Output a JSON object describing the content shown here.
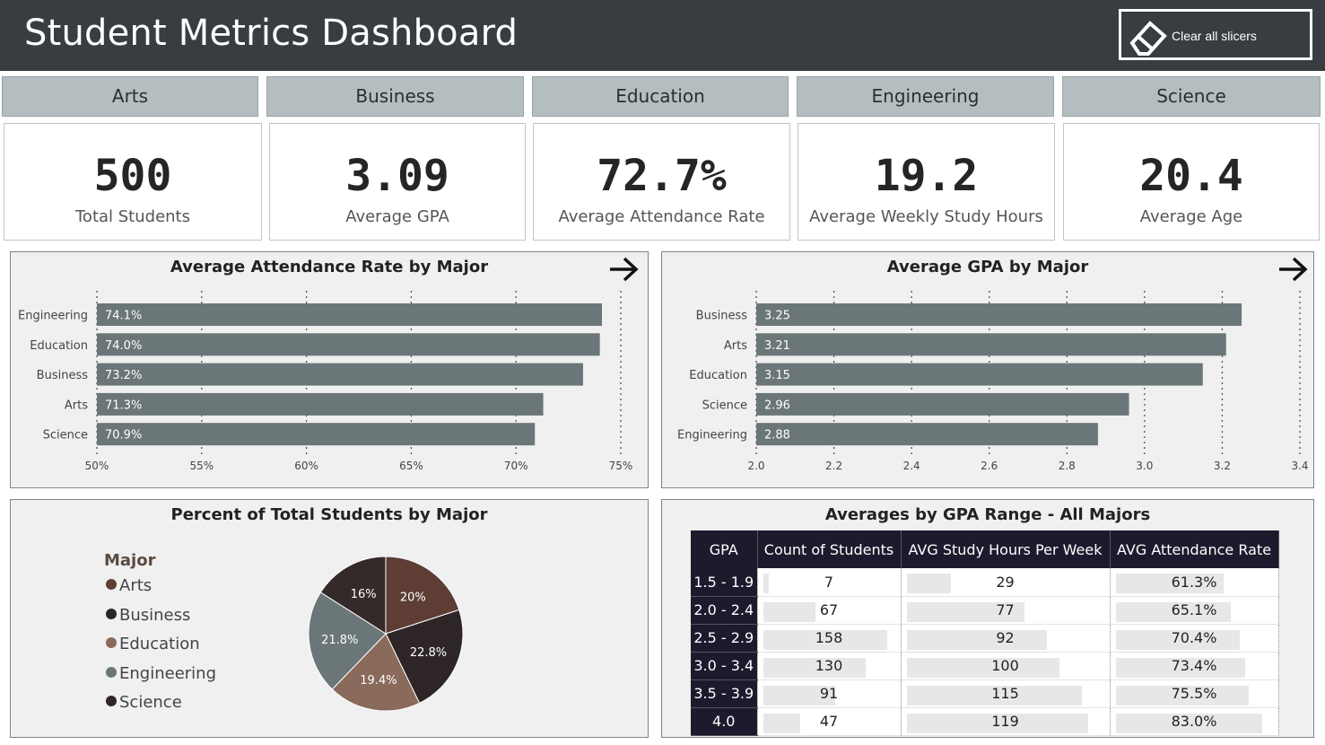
{
  "header": {
    "title": "Student Metrics Dashboard",
    "clear_label": "Clear all slicers"
  },
  "slicers": [
    "Arts",
    "Business",
    "Education",
    "Engineering",
    "Science"
  ],
  "cards": [
    {
      "value": "500",
      "label": "Total Students"
    },
    {
      "value": "3.09",
      "label": "Average GPA"
    },
    {
      "value": "72.7%",
      "label": "Average Attendance Rate"
    },
    {
      "value": "19.2",
      "label": "Average Weekly Study Hours"
    },
    {
      "value": "20.4",
      "label": "Average Age"
    }
  ],
  "colors": {
    "header_bg": "#373d40",
    "slicer_bg": "#b4bec1",
    "bar": "#6b7679",
    "panel_bg": "#eff0ef",
    "table_header": "#1e1a2e"
  },
  "chart_data": [
    {
      "type": "bar",
      "orientation": "horizontal",
      "title": "Average Attendance Rate by Major",
      "categories": [
        "Engineering",
        "Education",
        "Business",
        "Arts",
        "Science"
      ],
      "values": [
        74.1,
        74.0,
        73.2,
        71.3,
        70.9
      ],
      "value_labels": [
        "74.1%",
        "74.0%",
        "73.2%",
        "71.3%",
        "70.9%"
      ],
      "xlim": [
        50,
        75
      ],
      "xticks": [
        "50%",
        "55%",
        "60%",
        "65%",
        "70%",
        "75%"
      ],
      "grid": true
    },
    {
      "type": "bar",
      "orientation": "horizontal",
      "title": "Average GPA by Major",
      "categories": [
        "Business",
        "Arts",
        "Education",
        "Science",
        "Engineering"
      ],
      "values": [
        3.25,
        3.21,
        3.15,
        2.96,
        2.88
      ],
      "value_labels": [
        "3.25",
        "3.21",
        "3.15",
        "2.96",
        "2.88"
      ],
      "xlim": [
        2.0,
        3.4
      ],
      "xticks": [
        "2.0",
        "2.2",
        "2.4",
        "2.6",
        "2.8",
        "3.0",
        "3.2",
        "3.4"
      ],
      "grid": true
    },
    {
      "type": "pie",
      "title": "Percent of Total Students by Major",
      "legend_title": "Major",
      "legend_placement": "left",
      "categories": [
        "Arts",
        "Science",
        "Education",
        "Engineering",
        "Business"
      ],
      "values": [
        20,
        22.8,
        19.4,
        21.8,
        16
      ],
      "value_labels": [
        "20%",
        "22.8%",
        "19.4%",
        "21.8%",
        "16%"
      ],
      "colors": [
        "#5e3d35",
        "#2e2626",
        "#8a6a5a",
        "#6b7679",
        "#352a2a"
      ],
      "legend": [
        {
          "label": "Arts",
          "color": "#5e3d35"
        },
        {
          "label": "Business",
          "color": "#2b2626"
        },
        {
          "label": "Education",
          "color": "#8a6a5a"
        },
        {
          "label": "Engineering",
          "color": "#6b7679"
        },
        {
          "label": "Science",
          "color": "#2e2626"
        }
      ]
    },
    {
      "type": "table",
      "title": "Averages by GPA Range - All Majors",
      "columns": [
        "GPA",
        "Count of Students",
        "AVG Study Hours Per Week",
        "AVG Attendance Rate"
      ],
      "rows": [
        {
          "gpa": "1.5 - 1.9",
          "count": 7,
          "hours": 29,
          "attendance": "61.3%"
        },
        {
          "gpa": "2.0 - 2.4",
          "count": 67,
          "hours": 77,
          "attendance": "65.1%"
        },
        {
          "gpa": "2.5 - 2.9",
          "count": 158,
          "hours": 92,
          "attendance": "70.4%"
        },
        {
          "gpa": "3.0 - 3.4",
          "count": 130,
          "hours": 100,
          "attendance": "73.4%"
        },
        {
          "gpa": "3.5 - 3.9",
          "count": 91,
          "hours": 115,
          "attendance": "75.5%"
        },
        {
          "gpa": "4.0",
          "count": 47,
          "hours": 119,
          "attendance": "83.0%"
        }
      ]
    }
  ]
}
